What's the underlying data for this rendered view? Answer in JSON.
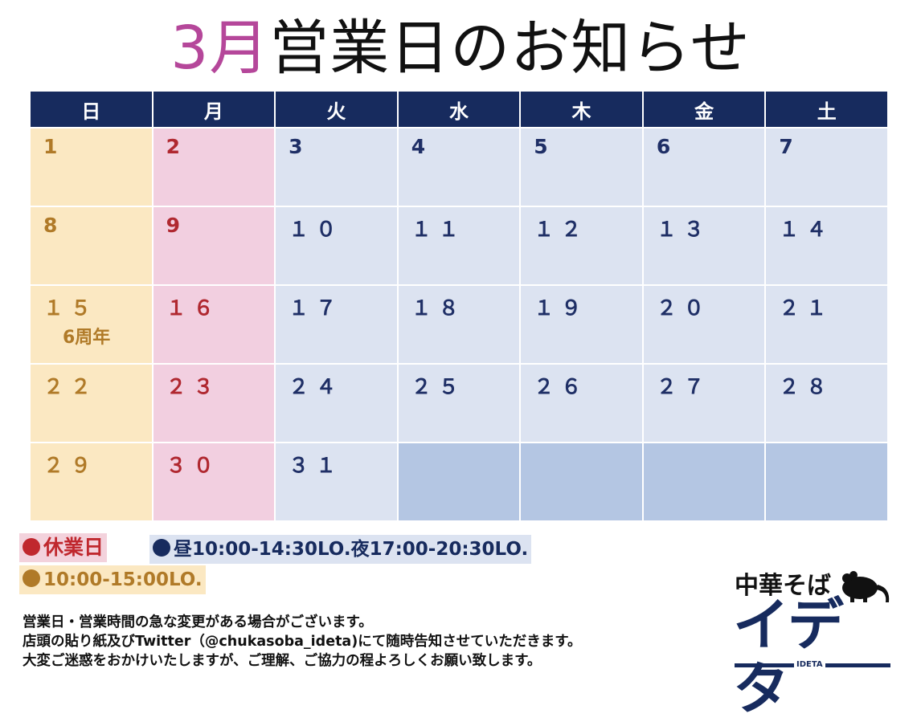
{
  "title": {
    "month": "3月",
    "rest": "営業日のお知らせ"
  },
  "weekdays": [
    "日",
    "月",
    "火",
    "水",
    "木",
    "金",
    "土"
  ],
  "weeks": [
    [
      "1",
      "2",
      "3",
      "4",
      "5",
      "6",
      "7"
    ],
    [
      "8",
      "9",
      "１０",
      "１１",
      "１２",
      "１３",
      "１４"
    ],
    [
      "１５",
      "１６",
      "１７",
      "１８",
      "１９",
      "２０",
      "２１"
    ],
    [
      "２２",
      "２３",
      "２４",
      "２５",
      "２６",
      "２７",
      "２８"
    ],
    [
      "２９",
      "３０",
      "３１",
      "",
      "",
      "",
      ""
    ]
  ],
  "special_note": "6周年",
  "legend": {
    "closed": "休業日",
    "hours": "昼10:00-14:30LO.夜17:00-20:30LO.",
    "sunday_hours": "10:00-15:00LO."
  },
  "legend_colors": {
    "closed": "#c0282e",
    "hours": "#172b5e",
    "sunday": "#b07a28"
  },
  "notice": [
    "営業日・営業時間の急な変更がある場合がございます。",
    "店頭の貼り紙及びTwitter（@chukasoba_ideta)にて随時告知させていただきます。",
    "大変ご迷惑をおかけいたしますが、ご理解、ご協力の程よろしくお願い致します。"
  ],
  "logo": {
    "top": "中華そば",
    "main": "イデタ",
    "sub": "IDETA",
    "icon": "rat-icon"
  }
}
